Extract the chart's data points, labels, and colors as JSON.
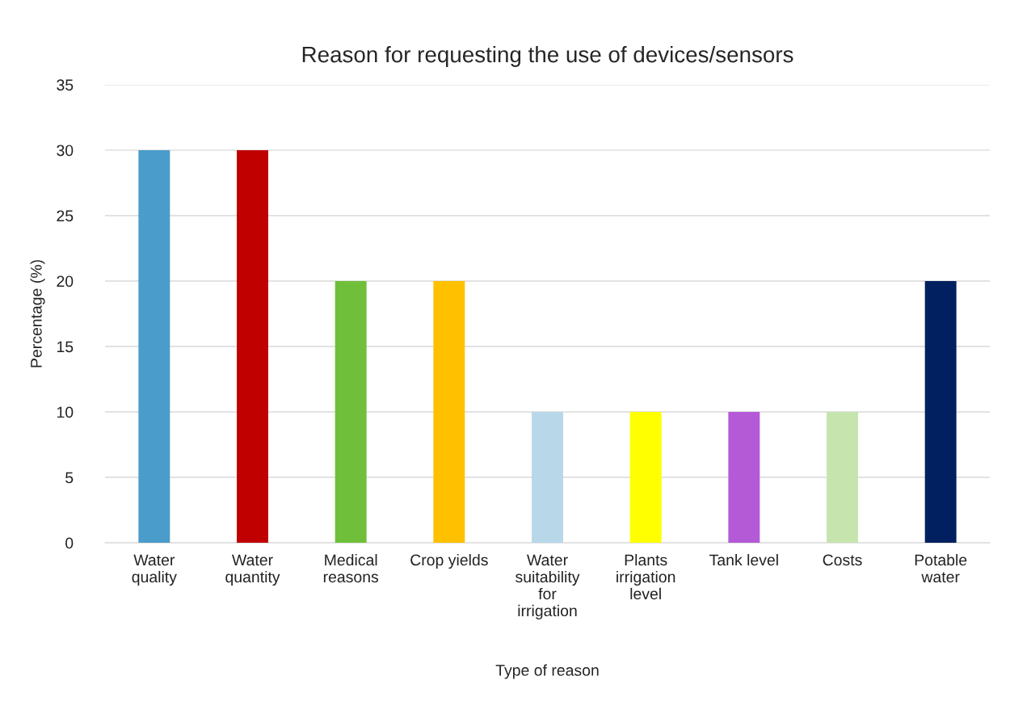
{
  "chart_data": {
    "type": "bar",
    "title": "Reason for requesting the use of devices/sensors",
    "xlabel": "Type of reason",
    "ylabel": "Percentage (%)",
    "categories": [
      "Water\nquality",
      "Water\nquantity",
      "Medical\nreasons",
      "Crop yields",
      "Water\nsuitability\nfor\nirrigation",
      "Plants\nirrigation\nlevel",
      "Tank level",
      "Costs",
      "Potable\nwater"
    ],
    "values": [
      30,
      30,
      20,
      20,
      10,
      10,
      10,
      10,
      20
    ],
    "colors": [
      "#4a9ccb",
      "#c00000",
      "#70bf3a",
      "#ffc000",
      "#b8d8ea",
      "#ffff00",
      "#b45ad6",
      "#c6e5ae",
      "#002060"
    ],
    "ylim": [
      0,
      35
    ],
    "yticks": [
      0,
      5,
      10,
      15,
      20,
      25,
      30,
      35
    ],
    "grid": "y"
  }
}
